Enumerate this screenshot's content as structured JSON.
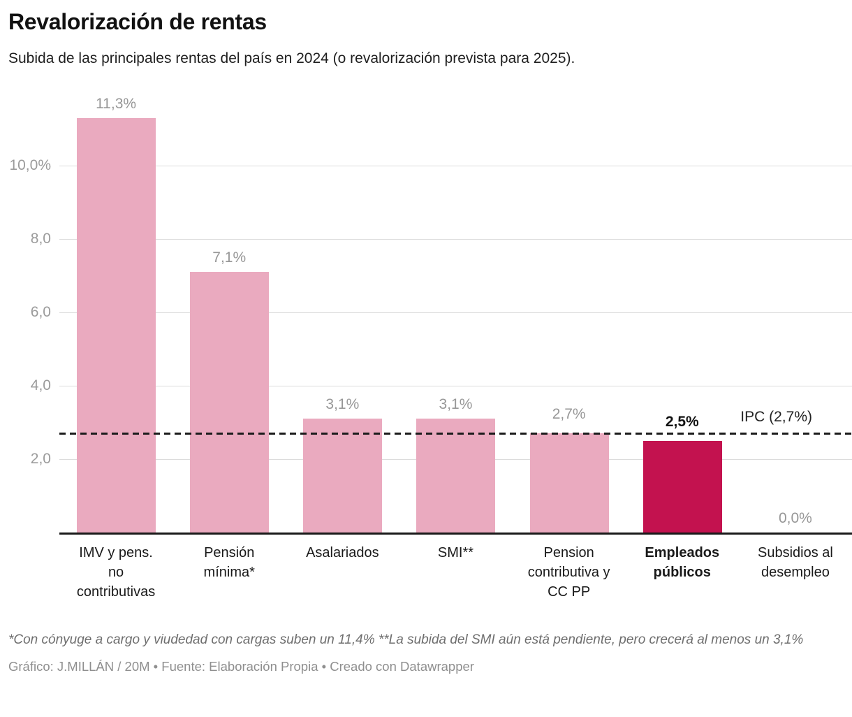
{
  "header": {
    "title": "Revalorización de rentas",
    "subtitle": "Subida de las principales rentas del país en 2024 (o revalorización prevista para 2025)."
  },
  "chart_data": {
    "type": "bar",
    "categories": [
      "IMV y pens. no contributivas",
      "Pensión mínima*",
      "Asalariados",
      "SMI**",
      "Pension contributiva y CC PP",
      "Empleados públicos",
      "Subsidios al desempleo"
    ],
    "category_lines": [
      [
        "IMV y pens.",
        "no",
        "contributivas"
      ],
      [
        "Pensión",
        "mínima*"
      ],
      [
        "Asalariados"
      ],
      [
        "SMI**"
      ],
      [
        "Pension",
        "contributiva y",
        "CC PP"
      ],
      [
        "Empleados",
        "públicos"
      ],
      [
        "Subsidios al",
        "desempleo"
      ]
    ],
    "values": [
      11.3,
      7.1,
      3.1,
      3.1,
      2.7,
      2.5,
      0.0
    ],
    "value_labels": [
      "11,3%",
      "7,1%",
      "3,1%",
      "3,1%",
      "2,7%",
      "2,5%",
      "0,0%"
    ],
    "highlighted_index": 5,
    "title": "Revalorización de rentas",
    "xlabel": "",
    "ylabel": "",
    "ylim": [
      0,
      12
    ],
    "grid": true,
    "legend_position": "none",
    "y_ticks": [
      {
        "value": 2,
        "label": "2,0"
      },
      {
        "value": 4,
        "label": "4,0"
      },
      {
        "value": 6,
        "label": "6,0"
      },
      {
        "value": 8,
        "label": "8,0"
      },
      {
        "value": 10,
        "label": "10,0%"
      }
    ],
    "reference_line": {
      "value": 2.7,
      "label": "IPC (2,7%)"
    },
    "colors": {
      "bar": "#eaaabf",
      "highlight": "#c3124f",
      "grid": "#dcdcdc",
      "axis": "#1a1a1a",
      "value_label": "#979797",
      "highlight_value_label": "#111111",
      "reference_line": "#1c1c1c"
    }
  },
  "footer": {
    "note": "*Con cónyuge a cargo y viudedad con cargas suben un 11,4% **La subida del SMI aún está pendiente, pero crecerá al menos un 3,1%",
    "byline": "Gráfico: J.MILLÁN / 20M • Fuente: Elaboración Propia • Creado con Datawrapper"
  }
}
